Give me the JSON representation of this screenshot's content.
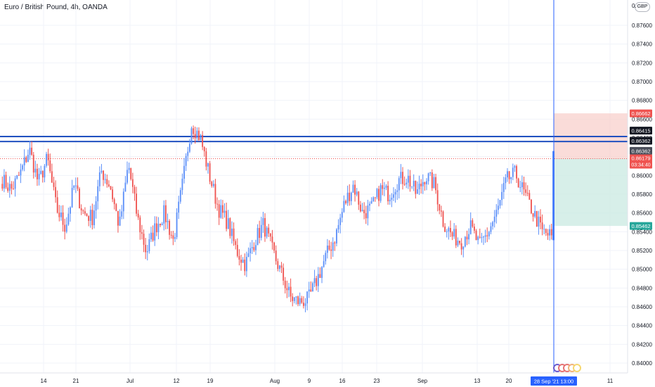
{
  "header": {
    "title": "Euro / British Pound, 4h, OANDA",
    "currency": "GBP"
  },
  "colors": {
    "up": "#5b8ff9",
    "down": "#ef5350",
    "level_line": "#2050c0",
    "stop_zone": "#f8d0cc",
    "target_zone": "#cdebe4",
    "entry_badge": "#ef5350",
    "target_badge": "#26a69a",
    "stop_badge": "#ef5350",
    "level_badge": "#131722",
    "time_badge": "#2962ff"
  },
  "chart_data": {
    "type": "candlestick",
    "symbol": "Euro / British Pound",
    "timeframe": "4h",
    "source": "OANDA",
    "y_axis": {
      "min": 0.838,
      "max": 0.878,
      "ticks": [
        "0.84000",
        "0.84200",
        "0.84400",
        "0.84600",
        "0.84800",
        "0.85000",
        "0.85200",
        "0.85400",
        "0.85600",
        "0.85800",
        "0.86000",
        "0.86200",
        "0.86400",
        "0.86600",
        "0.86800",
        "0.87000",
        "0.87200",
        "0.87400",
        "0.87600"
      ],
      "top_partial_label": "0."
    },
    "x_axis": {
      "labels": [
        "14",
        "21",
        "Jul",
        "12",
        "19",
        "Aug",
        "9",
        "16",
        "23",
        "Sep",
        "13",
        "20",
        "28 Sep '21",
        "13:00",
        "11"
      ],
      "highlighted_label": "28 Sep '21  13:00"
    },
    "price_path": [
      {
        "x": 0.8595
      },
      {
        "x": 0.8585
      },
      {
        "x": 0.8602
      },
      {
        "x": 0.8628
      },
      {
        "x": 0.8592
      },
      {
        "x": 0.8618
      },
      {
        "x": 0.8565
      },
      {
        "x": 0.8545
      },
      {
        "x": 0.859
      },
      {
        "x": 0.856
      },
      {
        "x": 0.8555
      },
      {
        "x": 0.8605
      },
      {
        "x": 0.8588
      },
      {
        "x": 0.8545
      },
      {
        "x": 0.8612
      },
      {
        "x": 0.8555
      },
      {
        "x": 0.8518
      },
      {
        "x": 0.8545
      },
      {
        "x": 0.856
      },
      {
        "x": 0.853
      },
      {
        "x": 0.859
      },
      {
        "x": 0.8655
      },
      {
        "x": 0.864
      },
      {
        "x": 0.86
      },
      {
        "x": 0.8565
      },
      {
        "x": 0.855
      },
      {
        "x": 0.852
      },
      {
        "x": 0.8505
      },
      {
        "x": 0.853
      },
      {
        "x": 0.8548
      },
      {
        "x": 0.852
      },
      {
        "x": 0.8495
      },
      {
        "x": 0.847
      },
      {
        "x": 0.8465
      },
      {
        "x": 0.8468
      },
      {
        "x": 0.849
      },
      {
        "x": 0.8515
      },
      {
        "x": 0.8535
      },
      {
        "x": 0.857
      },
      {
        "x": 0.859
      },
      {
        "x": 0.856
      },
      {
        "x": 0.8565
      },
      {
        "x": 0.8585
      },
      {
        "x": 0.858
      },
      {
        "x": 0.8595
      },
      {
        "x": 0.8598
      },
      {
        "x": 0.858
      },
      {
        "x": 0.86
      },
      {
        "x": 0.859
      },
      {
        "x": 0.855
      },
      {
        "x": 0.8535
      },
      {
        "x": 0.853
      },
      {
        "x": 0.8545
      },
      {
        "x": 0.8525
      },
      {
        "x": 0.854
      },
      {
        "x": 0.8562
      },
      {
        "x": 0.8595
      },
      {
        "x": 0.8602
      },
      {
        "x": 0.858
      },
      {
        "x": 0.856
      },
      {
        "x": 0.854
      },
      {
        "x": 0.8535
      }
    ],
    "horizontal_levels": [
      {
        "price": 0.86415,
        "label": "0.86415"
      },
      {
        "price": 0.86362,
        "label": "0.86362"
      }
    ],
    "position": {
      "type": "long",
      "entry": {
        "price": 0.86179,
        "label": "0.86179",
        "countdown": "03:34:40"
      },
      "stop": {
        "price": 0.86662,
        "label": "0.86662"
      },
      "target": {
        "price": 0.85462,
        "label": "0.85462"
      },
      "level_badges": [
        "0.86415",
        "0.86362",
        "0.86362"
      ]
    },
    "current_price_line": 0.86179,
    "grid": true
  }
}
